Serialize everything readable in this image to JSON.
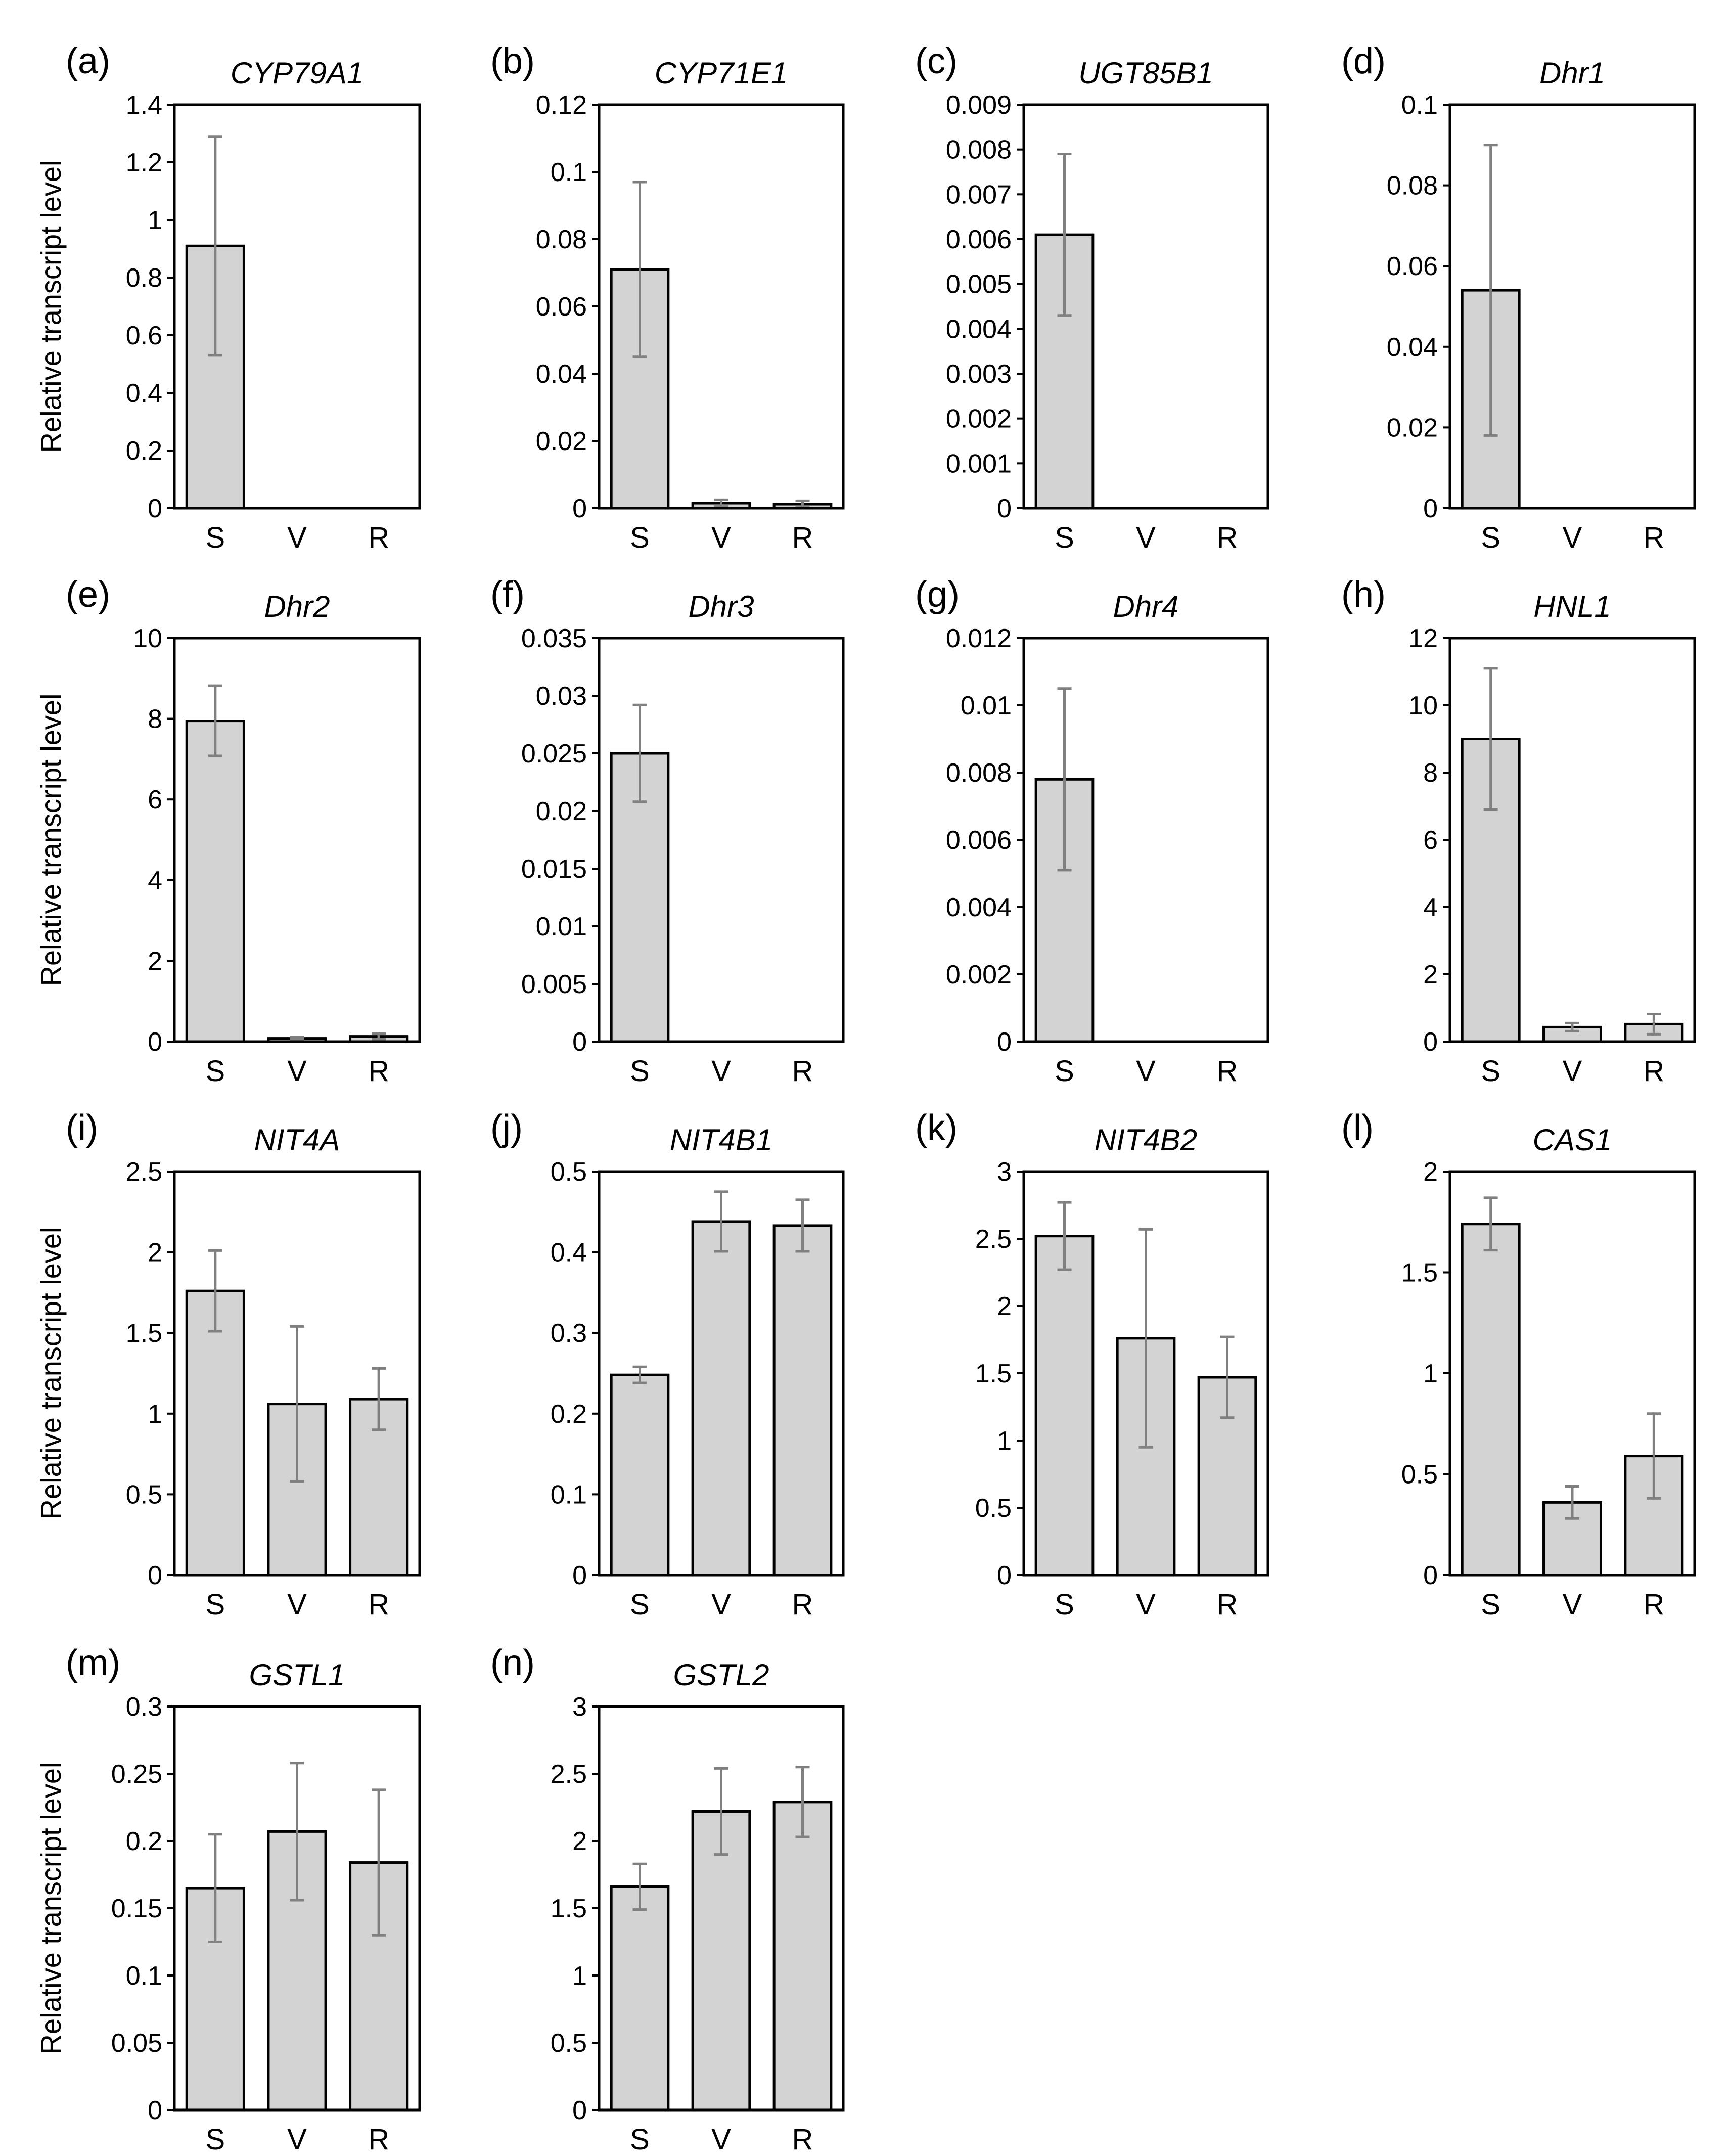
{
  "figure": {
    "ylabel": "Relative transcript level"
  },
  "chart_data": [
    {
      "type": "bar",
      "letter": "(a)",
      "title": "CYP79A1",
      "categories": [
        "S",
        "V",
        "R"
      ],
      "values": [
        0.91,
        0.0,
        0.0
      ],
      "errors": [
        0.38,
        0.0,
        0.0
      ],
      "ylim": [
        0,
        1.4
      ],
      "ticks": [
        "0",
        "0.2",
        "0.4",
        "0.6",
        "0.8",
        "1",
        "1.2",
        "1.4"
      ],
      "ylabel": "Relative transcript level"
    },
    {
      "type": "bar",
      "letter": "(b)",
      "title": "CYP71E1",
      "categories": [
        "S",
        "V",
        "R"
      ],
      "values": [
        0.071,
        0.0015,
        0.0012
      ],
      "errors": [
        0.026,
        0.001,
        0.001
      ],
      "ylim": [
        0,
        0.12
      ],
      "ticks": [
        "0",
        "0.02",
        "0.04",
        "0.06",
        "0.08",
        "0.1",
        "0.12"
      ],
      "ylabel": ""
    },
    {
      "type": "bar",
      "letter": "(c)",
      "title": "UGT85B1",
      "categories": [
        "S",
        "V",
        "R"
      ],
      "values": [
        0.0061,
        0.0,
        0.0
      ],
      "errors": [
        0.0018,
        0.0,
        0.0
      ],
      "ylim": [
        0,
        0.009
      ],
      "ticks": [
        "0",
        "0.001",
        "0.002",
        "0.003",
        "0.004",
        "0.005",
        "0.006",
        "0.007",
        "0.008",
        "0.009"
      ],
      "ylabel": ""
    },
    {
      "type": "bar",
      "letter": "(d)",
      "title": "Dhr1",
      "categories": [
        "S",
        "V",
        "R"
      ],
      "values": [
        0.054,
        0.0,
        0.0
      ],
      "errors": [
        0.036,
        0.0,
        0.0
      ],
      "ylim": [
        0,
        0.1
      ],
      "ticks": [
        "0",
        "0.02",
        "0.04",
        "0.06",
        "0.08",
        "0.1"
      ],
      "ylabel": ""
    },
    {
      "type": "bar",
      "letter": "(e)",
      "title": "Dhr2",
      "categories": [
        "S",
        "V",
        "R"
      ],
      "values": [
        7.95,
        0.08,
        0.13
      ],
      "errors": [
        0.87,
        0.03,
        0.07
      ],
      "ylim": [
        0,
        10
      ],
      "ticks": [
        "0",
        "2",
        "4",
        "6",
        "8",
        "10"
      ],
      "ylabel": "Relative transcript level"
    },
    {
      "type": "bar",
      "letter": "(f)",
      "title": "Dhr3",
      "categories": [
        "S",
        "V",
        "R"
      ],
      "values": [
        0.025,
        0.0,
        0.0
      ],
      "errors": [
        0.0042,
        0.0,
        0.0
      ],
      "ylim": [
        0,
        0.035
      ],
      "ticks": [
        "0",
        "0.005",
        "0.01",
        "0.015",
        "0.02",
        "0.025",
        "0.03",
        "0.035"
      ],
      "ylabel": ""
    },
    {
      "type": "bar",
      "letter": "(g)",
      "title": "Dhr4",
      "categories": [
        "S",
        "V",
        "R"
      ],
      "values": [
        0.0078,
        0.0,
        0.0
      ],
      "errors": [
        0.0027,
        0.0,
        0.0
      ],
      "ylim": [
        0,
        0.012
      ],
      "ticks": [
        "0",
        "0.002",
        "0.004",
        "0.006",
        "0.008",
        "0.01",
        "0.012"
      ],
      "ylabel": ""
    },
    {
      "type": "bar",
      "letter": "(h)",
      "title": "HNL1",
      "categories": [
        "S",
        "V",
        "R"
      ],
      "values": [
        9.0,
        0.43,
        0.52
      ],
      "errors": [
        2.1,
        0.12,
        0.3
      ],
      "ylim": [
        0,
        12
      ],
      "ticks": [
        "0",
        "2",
        "4",
        "6",
        "8",
        "10",
        "12"
      ],
      "ylabel": ""
    },
    {
      "type": "bar",
      "letter": "(i)",
      "title": "NIT4A",
      "categories": [
        "S",
        "V",
        "R"
      ],
      "values": [
        1.76,
        1.06,
        1.09
      ],
      "errors": [
        0.25,
        0.48,
        0.19
      ],
      "ylim": [
        0,
        2.5
      ],
      "ticks": [
        "0",
        "0.5",
        "1",
        "1.5",
        "2",
        "2.5"
      ],
      "ylabel": "Relative transcript level"
    },
    {
      "type": "bar",
      "letter": "(j)",
      "title": "NIT4B1",
      "categories": [
        "S",
        "V",
        "R"
      ],
      "values": [
        0.248,
        0.438,
        0.433
      ],
      "errors": [
        0.01,
        0.037,
        0.032
      ],
      "ylim": [
        0,
        0.5
      ],
      "ticks": [
        "0",
        "0.1",
        "0.2",
        "0.3",
        "0.4",
        "0.5"
      ],
      "ylabel": ""
    },
    {
      "type": "bar",
      "letter": "(k)",
      "title": "NIT4B2",
      "categories": [
        "S",
        "V",
        "R"
      ],
      "values": [
        2.52,
        1.76,
        1.47
      ],
      "errors": [
        0.25,
        0.81,
        0.3
      ],
      "ylim": [
        0,
        3
      ],
      "ticks": [
        "0",
        "0.5",
        "1",
        "1.5",
        "2",
        "2.5",
        "3"
      ],
      "ylabel": ""
    },
    {
      "type": "bar",
      "letter": "(l)",
      "title": "CAS1",
      "categories": [
        "S",
        "V",
        "R"
      ],
      "values": [
        1.74,
        0.36,
        0.59
      ],
      "errors": [
        0.13,
        0.08,
        0.21
      ],
      "ylim": [
        0,
        2
      ],
      "ticks": [
        "0",
        "0.5",
        "1",
        "1.5",
        "2"
      ],
      "ylabel": ""
    },
    {
      "type": "bar",
      "letter": "(m)",
      "title": "GSTL1",
      "categories": [
        "S",
        "V",
        "R"
      ],
      "values": [
        0.165,
        0.207,
        0.184
      ],
      "errors": [
        0.04,
        0.051,
        0.054
      ],
      "ylim": [
        0,
        0.3
      ],
      "ticks": [
        "0",
        "0.05",
        "0.1",
        "0.15",
        "0.2",
        "0.25",
        "0.3"
      ],
      "ylabel": "Relative transcript level"
    },
    {
      "type": "bar",
      "letter": "(n)",
      "title": "GSTL2",
      "categories": [
        "S",
        "V",
        "R"
      ],
      "values": [
        1.66,
        2.22,
        2.29
      ],
      "errors": [
        0.17,
        0.32,
        0.26
      ],
      "ylim": [
        0,
        3
      ],
      "ticks": [
        "0",
        "0.5",
        "1",
        "1.5",
        "2",
        "2.5",
        "3"
      ],
      "ylabel": ""
    }
  ]
}
